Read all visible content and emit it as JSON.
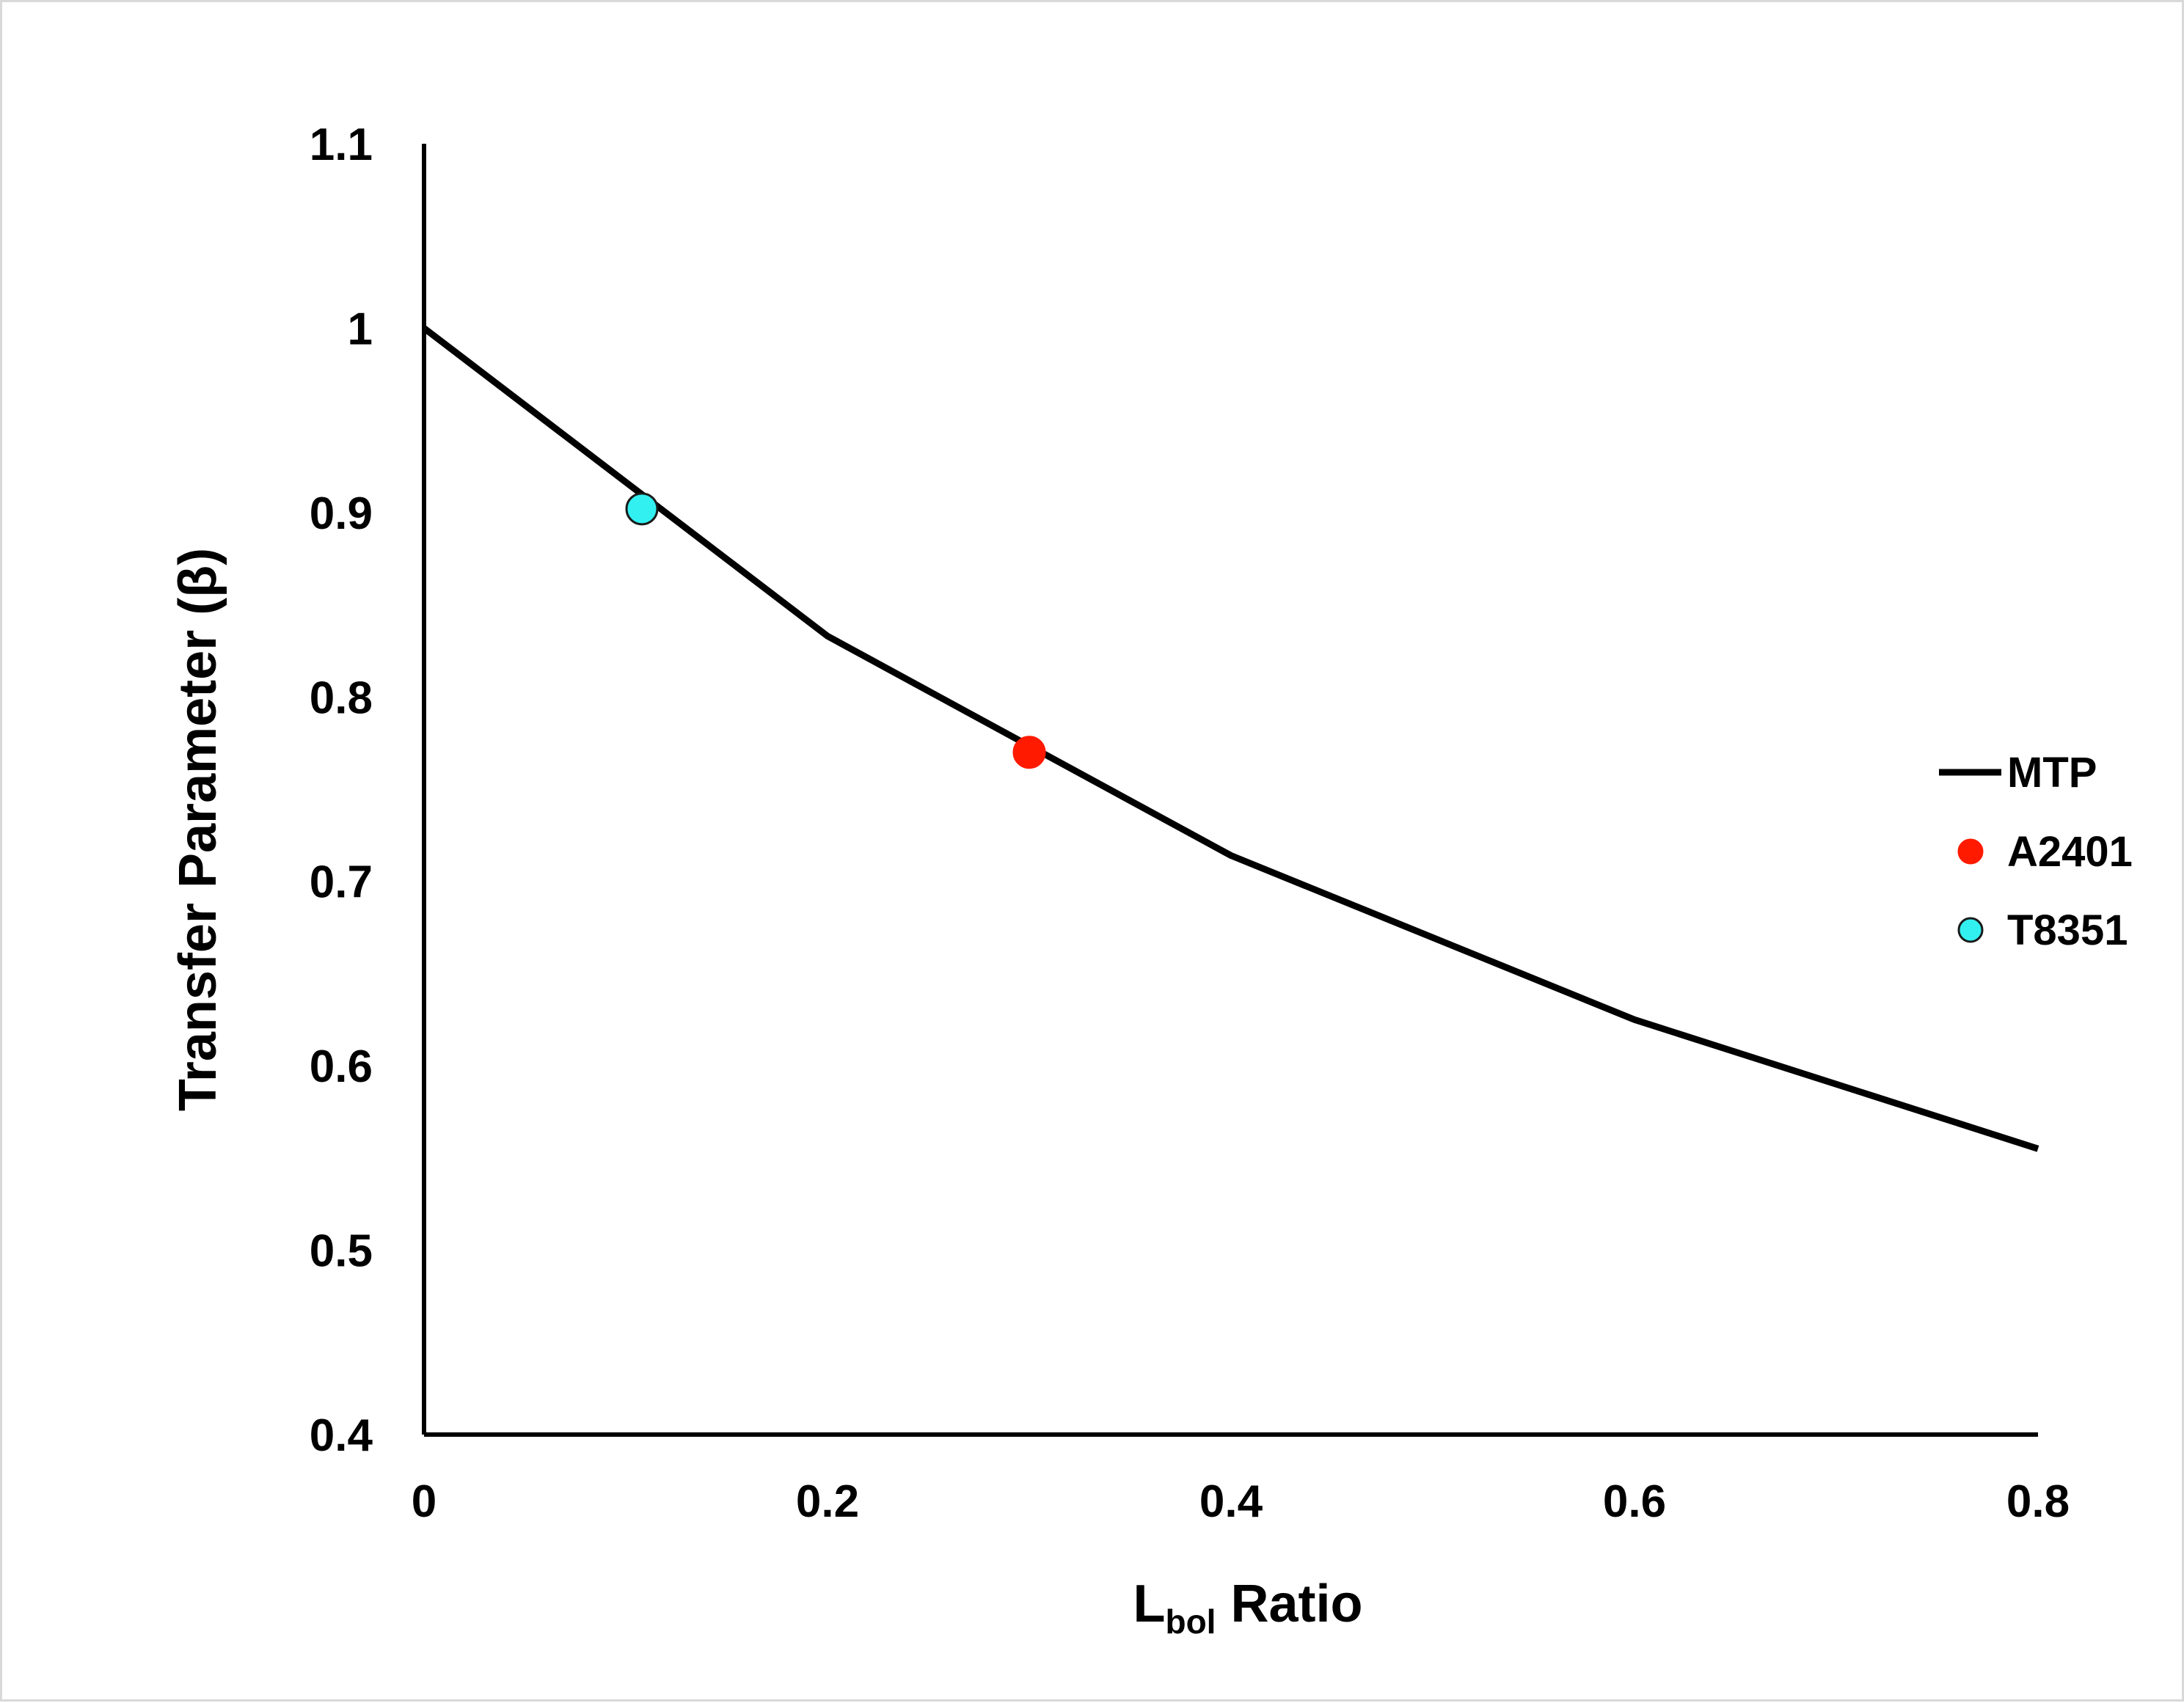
{
  "chart_data": {
    "type": "line",
    "xlabel": {
      "main": "L",
      "sub": "bol",
      "rest": " Ratio"
    },
    "ylabel": "Transfer Parameter (β)",
    "xlim": [
      0,
      0.8
    ],
    "ylim": [
      0.4,
      1.1
    ],
    "x_ticks": [
      "0",
      "0.2",
      "0.4",
      "0.6",
      "0.8"
    ],
    "y_ticks": [
      "0.4",
      "0.5",
      "0.6",
      "0.7",
      "0.8",
      "0.9",
      "1",
      "1.1"
    ],
    "grid": false,
    "legend_position": "right",
    "series": [
      {
        "name": "MTP",
        "kind": "line",
        "color": "#000000",
        "x": [
          0,
          0.2,
          0.4,
          0.6,
          0.8
        ],
        "y": [
          1.0,
          0.833,
          0.714,
          0.625,
          0.555
        ]
      },
      {
        "name": "A2401",
        "kind": "point",
        "color": "#ff1a00",
        "x": [
          0.3
        ],
        "y": [
          0.77
        ]
      },
      {
        "name": "T8351",
        "kind": "point",
        "color": "#33f0f0",
        "x": [
          0.108
        ],
        "y": [
          0.902
        ]
      }
    ]
  }
}
